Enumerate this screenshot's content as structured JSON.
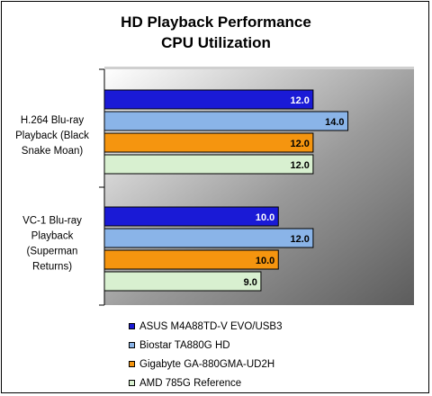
{
  "chart_data": {
    "type": "bar",
    "orientation": "horizontal",
    "title": "HD Playback Performance",
    "subtitle": "CPU Utilization",
    "categories": [
      [
        "H.264 Blu-ray",
        "Playback (Black",
        "Snake Moan)"
      ],
      [
        "VC-1 Blu-ray",
        "Playback",
        "(Superman",
        "Returns)"
      ]
    ],
    "series": [
      {
        "name": "ASUS M4A88TD-V EVO/USB3",
        "color": "#1a1ad6",
        "values": [
          12.0,
          10.0
        ]
      },
      {
        "name": "Biostar TA880G HD",
        "color": "#8ab4e8",
        "values": [
          14.0,
          12.0
        ]
      },
      {
        "name": "Gigabyte GA-880GMA-UD2H",
        "color": "#f5950f",
        "values": [
          12.0,
          10.0
        ]
      },
      {
        "name": "AMD 785G Reference",
        "color": "#d8f0d0",
        "values": [
          12.0,
          9.0
        ]
      }
    ],
    "xlim": [
      0,
      17.8
    ],
    "value_format": "0.0",
    "grid": false,
    "legend_position": "bottom"
  }
}
